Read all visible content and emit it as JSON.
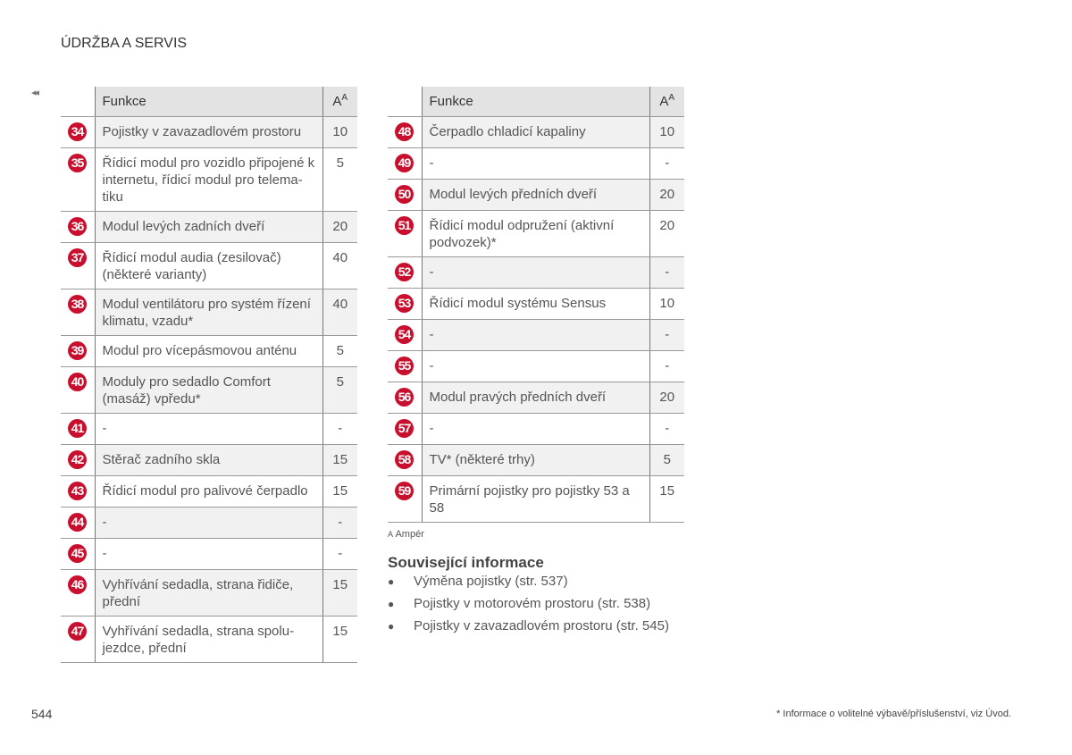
{
  "header": {
    "title": "ÚDRŽBA A SERVIS",
    "back_icon": "◂◂"
  },
  "table_headers": {
    "function": "Funkce",
    "amp": "A",
    "amp_sup": "A"
  },
  "left_rows": [
    {
      "num": "34",
      "text": "Pojistky v zavazadlovém prostoru",
      "amp": "10"
    },
    {
      "num": "35",
      "text": "Řídicí modul pro vozidlo připojené k internetu, řídicí modul pro telema-tiku",
      "amp": "5"
    },
    {
      "num": "36",
      "text": "Modul levých zadních dveří",
      "amp": "20"
    },
    {
      "num": "37",
      "text": "Řídicí modul audia (zesilovač) (některé varianty)",
      "amp": "40"
    },
    {
      "num": "38",
      "text": "Modul ventilátoru pro systém řízení klimatu, vzadu*",
      "amp": "40"
    },
    {
      "num": "39",
      "text": "Modul pro vícepásmovou anténu",
      "amp": "5"
    },
    {
      "num": "40",
      "text": "Moduly pro sedadlo Comfort (masáž) vpředu*",
      "amp": "5"
    },
    {
      "num": "41",
      "text": "-",
      "amp": "-"
    },
    {
      "num": "42",
      "text": "Stěrač zadního skla",
      "amp": "15"
    },
    {
      "num": "43",
      "text": "Řídicí modul pro palivové čerpadlo",
      "amp": "15"
    },
    {
      "num": "44",
      "text": "-",
      "amp": "-"
    },
    {
      "num": "45",
      "text": "-",
      "amp": "-"
    },
    {
      "num": "46",
      "text": "Vyhřívání sedadla, strana řidiče, přední",
      "amp": "15"
    },
    {
      "num": "47",
      "text": "Vyhřívání sedadla, strana spolu-jezdce, přední",
      "amp": "15"
    }
  ],
  "right_rows": [
    {
      "num": "48",
      "text": "Čerpadlo chladicí kapaliny",
      "amp": "10"
    },
    {
      "num": "49",
      "text": "-",
      "amp": "-"
    },
    {
      "num": "50",
      "text": "Modul levých předních dveří",
      "amp": "20"
    },
    {
      "num": "51",
      "text": "Řídicí modul odpružení (aktivní podvozek)*",
      "amp": "20"
    },
    {
      "num": "52",
      "text": "-",
      "amp": "-"
    },
    {
      "num": "53",
      "text": "Řídicí modul systému Sensus",
      "amp": "10"
    },
    {
      "num": "54",
      "text": "-",
      "amp": "-"
    },
    {
      "num": "55",
      "text": "-",
      "amp": "-"
    },
    {
      "num": "56",
      "text": "Modul pravých předních dveří",
      "amp": "20"
    },
    {
      "num": "57",
      "text": "-",
      "amp": "-"
    },
    {
      "num": "58",
      "text": "TV* (některé trhy)",
      "amp": "5"
    },
    {
      "num": "59",
      "text": "Primární pojistky pro pojistky 53 a 58",
      "amp": "15"
    }
  ],
  "footnote": {
    "mark": "A",
    "text": "Ampér"
  },
  "related": {
    "title": "Související informace",
    "items": [
      "Výměna pojistky (str. 537)",
      "Pojistky v motorovém prostoru (str. 538)",
      "Pojistky v zavazadlovém prostoru (str. 545)"
    ]
  },
  "page_number": "544",
  "footer_note": "* Informace o volitelné výbavě/příslušenství, viz Úvod.",
  "colors": {
    "badge": "#c8102e",
    "header_bg": "#e3e3e3",
    "shade": "#f1f1f1"
  }
}
